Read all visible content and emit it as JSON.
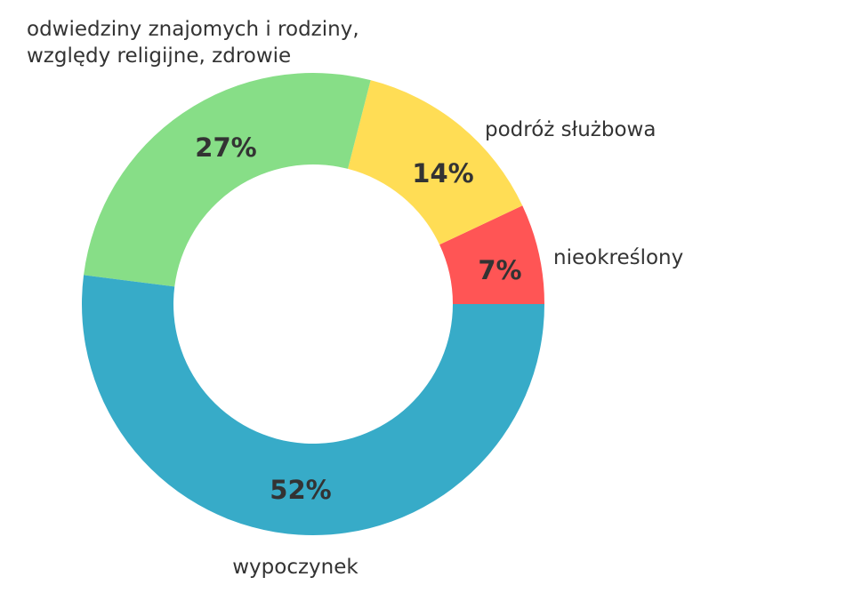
{
  "chart_data": {
    "type": "pie",
    "variant": "donut",
    "direction": "counter-clockwise",
    "start": "east",
    "slices": [
      {
        "label": "nieokreślony",
        "value": 7,
        "value_label": "7%",
        "color": "#FF5555"
      },
      {
        "label": "podróż służbowa",
        "value": 14,
        "value_label": "14%",
        "color": "#FFDD55"
      },
      {
        "label_lines": [
          "odwiedziny znajomych i rodziny,",
          "względy religijne, zdrowie"
        ],
        "value": 27,
        "value_label": "27%",
        "color": "#87DE87"
      },
      {
        "label": "wypoczynek",
        "value": 52,
        "value_label": "52%",
        "color": "#37ABC8"
      }
    ]
  }
}
